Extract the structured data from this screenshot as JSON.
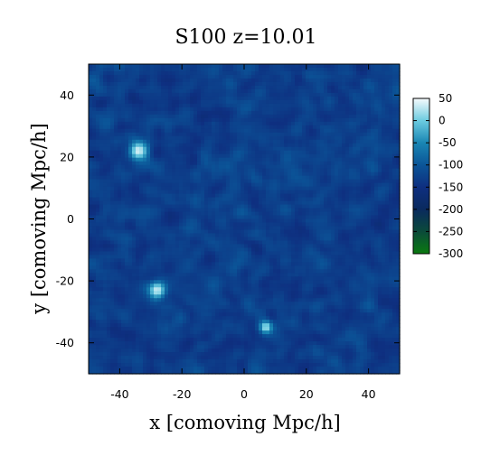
{
  "chart_data": {
    "type": "heatmap",
    "title": "S100 z=10.01",
    "xlabel": "x [comoving Mpc/h]",
    "ylabel": "y [comoving Mpc/h]",
    "xlim": [
      -50,
      50
    ],
    "ylim": [
      -50,
      50
    ],
    "x_ticks": [
      -40,
      -20,
      0,
      20,
      40
    ],
    "y_ticks": [
      -40,
      -20,
      0,
      20,
      40
    ],
    "colorbar": {
      "range": [
        -300,
        50
      ],
      "ticks": [
        50,
        0,
        -50,
        -100,
        -150,
        -200,
        -250,
        -300
      ],
      "colormap_stops": [
        {
          "value": -300,
          "color": "#0a7a10"
        },
        {
          "value": -250,
          "color": "#0b4a3a"
        },
        {
          "value": -200,
          "color": "#0a2a5e"
        },
        {
          "value": -150,
          "color": "#0e2f80"
        },
        {
          "value": -100,
          "color": "#0b5598"
        },
        {
          "value": -50,
          "color": "#1a86b4"
        },
        {
          "value": 0,
          "color": "#6ccbe0"
        },
        {
          "value": 50,
          "color": "#f6fbfd"
        }
      ]
    },
    "background_value": -130,
    "features": [
      {
        "x": -34,
        "y": 22,
        "value": 40,
        "radius": 3
      },
      {
        "x": -28,
        "y": -23,
        "value": 35,
        "radius": 2.8
      },
      {
        "x": 7,
        "y": -35,
        "value": 25,
        "radius": 2
      },
      {
        "x": 38,
        "y": -16,
        "value": -120,
        "radius": 1.8
      }
    ]
  }
}
